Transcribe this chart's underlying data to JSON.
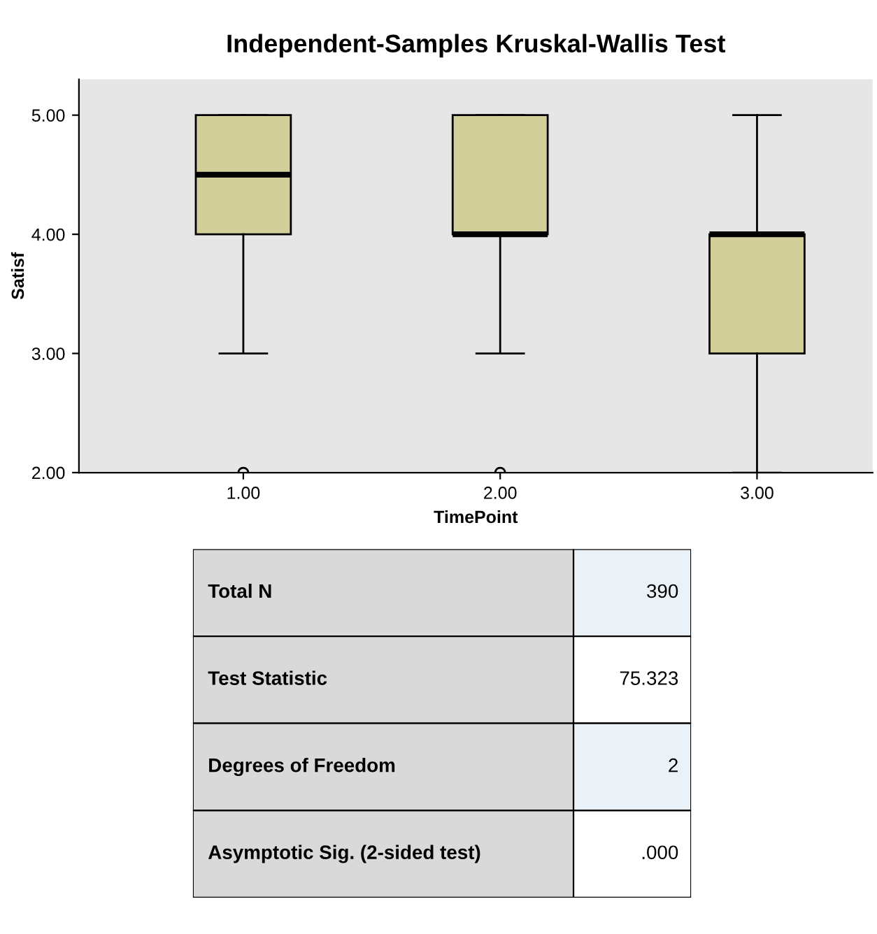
{
  "chart_data": [
    {
      "type": "box",
      "title": "Independent-Samples Kruskal-Wallis Test",
      "xlabel": "TimePoint",
      "ylabel": "Satisf",
      "categories": [
        "1.00",
        "2.00",
        "3.00"
      ],
      "color": "#d2cf9a",
      "boxes": [
        {
          "low": 3,
          "q1": 4,
          "median": 4.5,
          "q3": 5,
          "high": 5,
          "outliers": [
            2
          ]
        },
        {
          "low": 3,
          "q1": 4,
          "median": 4,
          "q3": 5,
          "high": 5,
          "outliers": [
            2
          ]
        },
        {
          "low": 2,
          "q1": 3,
          "median": 4,
          "q3": 4,
          "high": 5
        }
      ],
      "ylim": [
        2,
        5.3
      ],
      "yticks": [
        {
          "value": 2,
          "label": "2.00"
        },
        {
          "value": 3,
          "label": "3.00"
        },
        {
          "value": 4,
          "label": "4.00"
        },
        {
          "value": 5,
          "label": "5.00"
        }
      ],
      "grid": false
    },
    {
      "type": "other",
      "categories": [
        "Total N",
        "Test Statistic",
        "Degrees of Freedom",
        "Asymptotic Sig. (2-sided test)"
      ],
      "value_labels": [
        "390",
        "75.323",
        "2",
        ".000"
      ]
    }
  ]
}
